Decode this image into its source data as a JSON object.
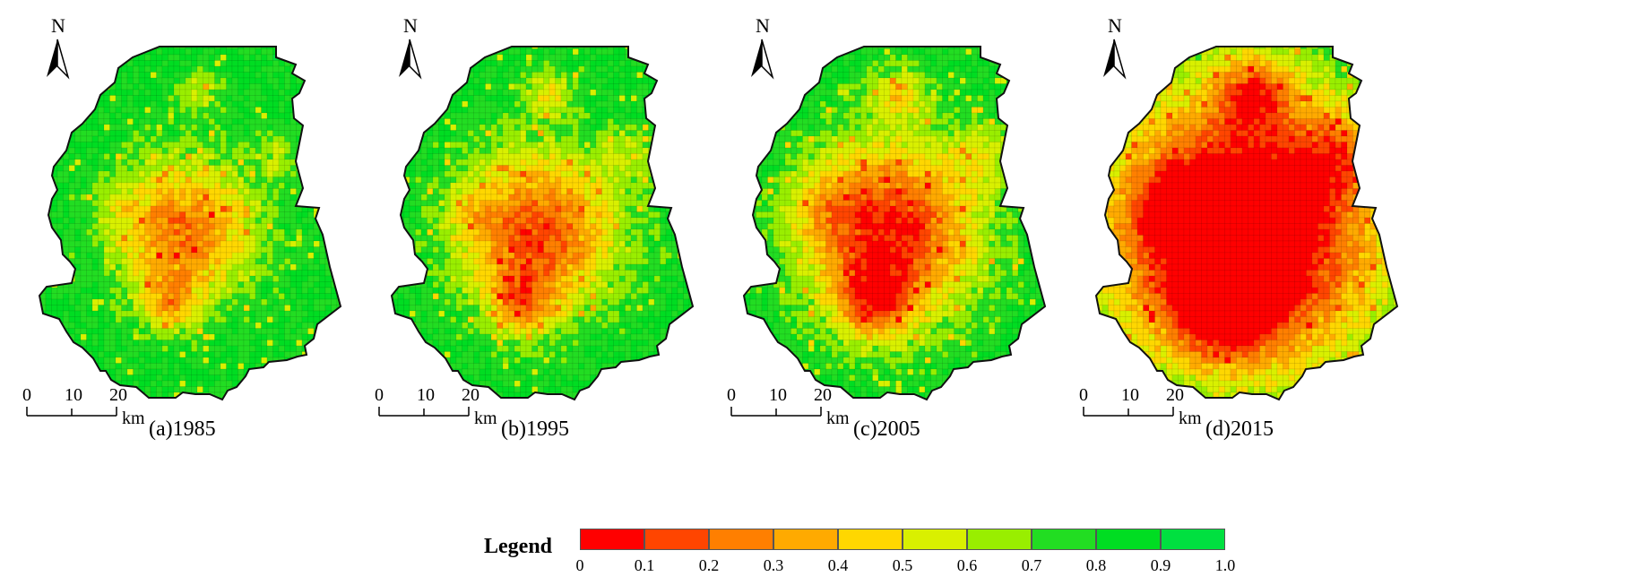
{
  "panels": [
    {
      "label": "(a)1985",
      "intensity": 0.85
    },
    {
      "label": "(b)1995",
      "intensity": 1.0
    },
    {
      "label": "(c)2005",
      "intensity": 1.15
    },
    {
      "label": "(d)2015",
      "intensity": 1.6
    }
  ],
  "north_label": "N",
  "scale": {
    "ticks": [
      "0",
      "10",
      "20"
    ],
    "unit": "km"
  },
  "legend": {
    "title": "Legend",
    "ticks": [
      "0",
      "0.1",
      "0.2",
      "0.3",
      "0.4",
      "0.5",
      "0.6",
      "0.7",
      "0.8",
      "0.9",
      "1.0"
    ],
    "colors": [
      "#ff0000",
      "#ff4500",
      "#ff7f00",
      "#ffaa00",
      "#ffd700",
      "#d9f000",
      "#99ee00",
      "#22dd22",
      "#00dd22",
      "#00e040"
    ]
  }
}
